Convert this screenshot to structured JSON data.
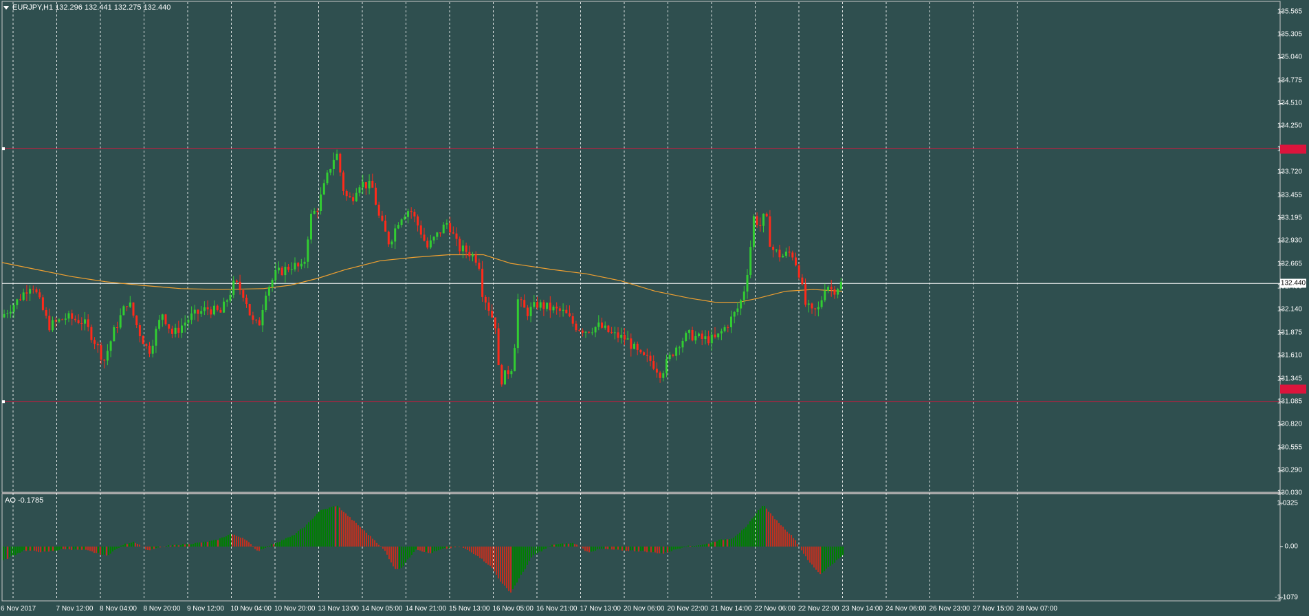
{
  "header": {
    "symbol": "EURJPY,H1",
    "ohlc": "132.296 132.441 132.275 132.440"
  },
  "colors": {
    "background": "#2f4f4f",
    "bull": "#32cd32",
    "bear": "#ff2a1a",
    "ma": "#f0a030",
    "level": "#dc143c",
    "grid": "#ffffff",
    "ao_up": "#008000",
    "ao_down": "#c03020"
  },
  "price_axis": {
    "labels": [
      "135.565",
      "135.305",
      "135.040",
      "134.775",
      "134.510",
      "134.250",
      "133.985",
      "133.720",
      "133.455",
      "133.195",
      "132.930",
      "132.665",
      "132.400",
      "132.140",
      "131.875",
      "131.610",
      "131.345",
      "131.085",
      "130.820",
      "130.555",
      "130.290",
      "130.030"
    ]
  },
  "price_tags": {
    "current": "132.440",
    "level_upper": "133.990",
    "level_lower": "131.080"
  },
  "ao": {
    "label": "AO -0.1785",
    "axis_labels": [
      "1.0325",
      "0.00",
      "-1.1079"
    ]
  },
  "time_axis": {
    "labels": [
      "6 Nov 2017",
      "7 Nov 12:00",
      "8 Nov 04:00",
      "8 Nov 20:00",
      "9 Nov 12:00",
      "10 Nov 04:00",
      "10 Nov 20:00",
      "13 Nov 13:00",
      "14 Nov 05:00",
      "14 Nov 21:00",
      "15 Nov 13:00",
      "16 Nov 05:00",
      "16 Nov 21:00",
      "17 Nov 13:00",
      "20 Nov 06:00",
      "20 Nov 22:00",
      "21 Nov 14:00",
      "22 Nov 06:00",
      "22 Nov 22:00",
      "23 Nov 14:00",
      "24 Nov 06:00",
      "26 Nov 23:00",
      "27 Nov 15:00",
      "28 Nov 07:00"
    ]
  },
  "chart_data": {
    "type": "candlestick",
    "symbol": "EURJPY",
    "timeframe": "H1",
    "ylim": [
      130.03,
      135.565
    ],
    "horizontal_levels": [
      133.99,
      132.44,
      131.08
    ],
    "price_path": [
      [
        0,
        132.05
      ],
      [
        25,
        132.25
      ],
      [
        45,
        132.45
      ],
      [
        70,
        131.95
      ],
      [
        95,
        132.05
      ],
      [
        120,
        132.0
      ],
      [
        135,
        131.8
      ],
      [
        150,
        131.55
      ],
      [
        165,
        131.9
      ],
      [
        185,
        132.25
      ],
      [
        200,
        131.9
      ],
      [
        215,
        131.65
      ],
      [
        235,
        132.1
      ],
      [
        250,
        131.85
      ],
      [
        275,
        132.05
      ],
      [
        300,
        132.15
      ],
      [
        320,
        132.1
      ],
      [
        340,
        132.45
      ],
      [
        355,
        132.3
      ],
      [
        365,
        132.0
      ],
      [
        375,
        131.95
      ],
      [
        385,
        132.35
      ],
      [
        400,
        132.55
      ],
      [
        425,
        132.65
      ],
      [
        440,
        132.6
      ],
      [
        450,
        133.2
      ],
      [
        460,
        133.3
      ],
      [
        470,
        133.55
      ],
      [
        480,
        133.8
      ],
      [
        488,
        133.95
      ],
      [
        500,
        133.45
      ],
      [
        510,
        133.4
      ],
      [
        520,
        133.6
      ],
      [
        540,
        133.55
      ],
      [
        550,
        133.2
      ],
      [
        565,
        132.9
      ],
      [
        580,
        133.2
      ],
      [
        595,
        133.3
      ],
      [
        610,
        133.05
      ],
      [
        620,
        132.85
      ],
      [
        635,
        133.0
      ],
      [
        650,
        133.15
      ],
      [
        665,
        132.85
      ],
      [
        680,
        132.8
      ],
      [
        695,
        132.7
      ],
      [
        700,
        132.35
      ],
      [
        710,
        132.15
      ],
      [
        720,
        131.95
      ],
      [
        725,
        131.3
      ],
      [
        735,
        131.4
      ],
      [
        745,
        131.5
      ],
      [
        752,
        132.25
      ],
      [
        765,
        132.1
      ],
      [
        780,
        132.2
      ],
      [
        800,
        132.15
      ],
      [
        820,
        132.1
      ],
      [
        835,
        131.95
      ],
      [
        850,
        131.9
      ],
      [
        870,
        131.95
      ],
      [
        890,
        131.85
      ],
      [
        910,
        131.8
      ],
      [
        930,
        131.6
      ],
      [
        945,
        131.55
      ],
      [
        960,
        131.4
      ],
      [
        970,
        131.55
      ],
      [
        985,
        131.75
      ],
      [
        1000,
        131.85
      ],
      [
        1020,
        131.8
      ],
      [
        1040,
        131.8
      ],
      [
        1055,
        131.95
      ],
      [
        1068,
        132.1
      ],
      [
        1075,
        132.2
      ],
      [
        1082,
        132.4
      ],
      [
        1088,
        132.7
      ],
      [
        1095,
        133.2
      ],
      [
        1105,
        133.1
      ],
      [
        1112,
        133.25
      ],
      [
        1120,
        132.85
      ],
      [
        1135,
        132.75
      ],
      [
        1150,
        132.8
      ],
      [
        1160,
        132.6
      ],
      [
        1170,
        132.2
      ],
      [
        1180,
        132.1
      ],
      [
        1190,
        132.15
      ],
      [
        1200,
        132.45
      ],
      [
        1210,
        132.35
      ],
      [
        1222,
        132.44
      ]
    ],
    "moving_average": [
      [
        0,
        132.68
      ],
      [
        50,
        132.6
      ],
      [
        100,
        132.52
      ],
      [
        150,
        132.46
      ],
      [
        200,
        132.42
      ],
      [
        260,
        132.38
      ],
      [
        320,
        132.37
      ],
      [
        380,
        132.38
      ],
      [
        420,
        132.42
      ],
      [
        460,
        132.5
      ],
      [
        500,
        132.6
      ],
      [
        550,
        132.7
      ],
      [
        600,
        132.74
      ],
      [
        650,
        132.77
      ],
      [
        700,
        132.77
      ],
      [
        740,
        132.67
      ],
      [
        800,
        132.6
      ],
      [
        850,
        132.55
      ],
      [
        900,
        132.47
      ],
      [
        950,
        132.35
      ],
      [
        1000,
        132.27
      ],
      [
        1040,
        132.22
      ],
      [
        1070,
        132.22
      ],
      [
        1100,
        132.27
      ],
      [
        1140,
        132.35
      ],
      [
        1180,
        132.37
      ],
      [
        1222,
        132.35
      ]
    ],
    "ao_histogram": {
      "ylim": [
        -1.1079,
        1.0325
      ],
      "path": [
        [
          0,
          -0.3
        ],
        [
          30,
          -0.08
        ],
        [
          60,
          -0.12
        ],
        [
          90,
          -0.05
        ],
        [
          120,
          -0.08
        ],
        [
          150,
          -0.2
        ],
        [
          175,
          0.05
        ],
        [
          190,
          0.12
        ],
        [
          210,
          -0.08
        ],
        [
          240,
          0.02
        ],
        [
          280,
          0.08
        ],
        [
          310,
          0.15
        ],
        [
          330,
          0.3
        ],
        [
          350,
          0.2
        ],
        [
          370,
          -0.1
        ],
        [
          390,
          0.05
        ],
        [
          420,
          0.25
        ],
        [
          440,
          0.5
        ],
        [
          460,
          0.85
        ],
        [
          485,
          0.98
        ],
        [
          510,
          0.6
        ],
        [
          540,
          0.15
        ],
        [
          555,
          -0.1
        ],
        [
          570,
          -0.5
        ],
        [
          580,
          -0.45
        ],
        [
          600,
          -0.05
        ],
        [
          620,
          -0.15
        ],
        [
          640,
          -0.05
        ],
        [
          665,
          0.0
        ],
        [
          690,
          -0.2
        ],
        [
          710,
          -0.45
        ],
        [
          725,
          -0.8
        ],
        [
          738,
          -1.0
        ],
        [
          750,
          -0.7
        ],
        [
          770,
          -0.2
        ],
        [
          800,
          0.05
        ],
        [
          830,
          0.08
        ],
        [
          850,
          -0.12
        ],
        [
          870,
          -0.05
        ],
        [
          900,
          -0.08
        ],
        [
          930,
          -0.1
        ],
        [
          960,
          -0.15
        ],
        [
          990,
          0.0
        ],
        [
          1020,
          0.05
        ],
        [
          1040,
          0.15
        ],
        [
          1060,
          0.2
        ],
        [
          1080,
          0.45
        ],
        [
          1095,
          0.8
        ],
        [
          1105,
          1.0
        ],
        [
          1120,
          0.7
        ],
        [
          1150,
          0.2
        ],
        [
          1170,
          -0.3
        ],
        [
          1188,
          -0.6
        ],
        [
          1200,
          -0.45
        ],
        [
          1222,
          -0.18
        ]
      ]
    }
  }
}
